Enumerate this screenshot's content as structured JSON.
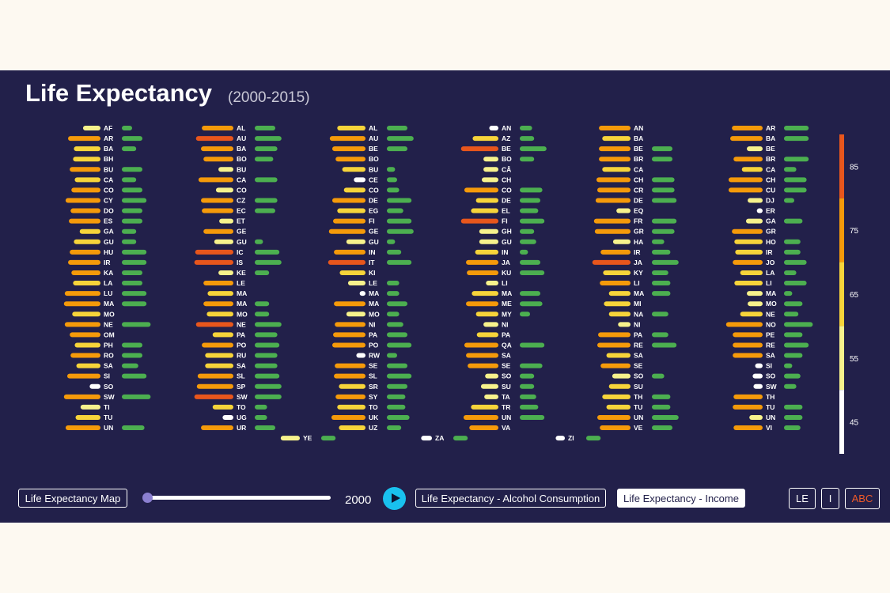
{
  "header": {
    "title": "Life Expectancy",
    "subtitle": "(2000-2015)"
  },
  "controls": {
    "map_button": "Life Expectancy Map",
    "year": "2000",
    "alcohol_button": "Life Expectancy - Alcohol Consumption",
    "income_button": "Life Expectancy - Income",
    "sort_le": "LE",
    "sort_i": "I",
    "sort_abc": "ABC",
    "play_icon": "play-icon"
  },
  "colors": {
    "background": "#22204a",
    "page": "#fdf9f1",
    "income_bar": "#4caf50",
    "play": "#19c1ee",
    "abc_active": "#f05a28"
  },
  "chart_data": {
    "type": "bar",
    "title": "Life Expectancy",
    "subtitle": "(2000-2015)",
    "year": 2000,
    "color_scale": {
      "ticks": [
        45,
        55,
        65,
        75,
        85
      ],
      "bins": [
        {
          "min": 40,
          "max": 50,
          "color": "#ffffff"
        },
        {
          "min": 50,
          "max": 60,
          "color": "#f7f28c"
        },
        {
          "min": 60,
          "max": 70,
          "color": "#f7d43a"
        },
        {
          "min": 70,
          "max": 80,
          "color": "#f59a0a"
        },
        {
          "min": 80,
          "max": 90,
          "color": "#e8561c"
        }
      ]
    },
    "columns": [
      [
        [
          "AF",
          56,
          5
        ],
        [
          "AR",
          74,
          10
        ],
        [
          "BA",
          67,
          7
        ],
        [
          "BH",
          68,
          0
        ],
        [
          "BU",
          72,
          10
        ],
        [
          "CA",
          66,
          7
        ],
        [
          "CO",
          70,
          10
        ],
        [
          "CY",
          77,
          12
        ],
        [
          "DO",
          71,
          10
        ],
        [
          "ES",
          73,
          10
        ],
        [
          "GA",
          60,
          7
        ],
        [
          "GU",
          67,
          7
        ],
        [
          "HU",
          72,
          12
        ],
        [
          "IR",
          74,
          12
        ],
        [
          "KA",
          70,
          10
        ],
        [
          "LA",
          68,
          10
        ],
        [
          "LU",
          78,
          12
        ],
        [
          "MA",
          79,
          12
        ],
        [
          "MO",
          69,
          0
        ],
        [
          "NE",
          78,
          14
        ],
        [
          "OM",
          72,
          0
        ],
        [
          "PH",
          66,
          10
        ],
        [
          "RO",
          71,
          10
        ],
        [
          "SA",
          64,
          8
        ],
        [
          "SI",
          75,
          12
        ],
        [
          "SO",
          48,
          0
        ],
        [
          "SW",
          79,
          14
        ],
        [
          "TI",
          59,
          0
        ],
        [
          "TU",
          65,
          0
        ],
        [
          "UN",
          77,
          11
        ]
      ],
      [
        [
          "AL",
          73,
          10
        ],
        [
          "AU",
          80,
          13
        ],
        [
          "BA",
          74,
          11
        ],
        [
          "BO",
          71,
          9
        ],
        [
          "BU",
          53,
          0
        ],
        [
          "CA",
          77,
          11
        ],
        [
          "CO",
          56,
          0
        ],
        [
          "CZ",
          74,
          11
        ],
        [
          "EC",
          73,
          10
        ],
        [
          "ET",
          52,
          0
        ],
        [
          "GE",
          71,
          0
        ],
        [
          "GU",
          58,
          4
        ],
        [
          "IC",
          81,
          12
        ],
        [
          "IS",
          82,
          13
        ],
        [
          "KE",
          53,
          7
        ],
        [
          "LE",
          71,
          0
        ],
        [
          "MA",
          66,
          0
        ],
        [
          "MA",
          71,
          7
        ],
        [
          "MO",
          67,
          7
        ],
        [
          "NE",
          80,
          13
        ],
        [
          "PA",
          60,
          11
        ],
        [
          "PO",
          73,
          12
        ],
        [
          "RU",
          69,
          11
        ],
        [
          "SA",
          69,
          11
        ],
        [
          "SL",
          78,
          12
        ],
        [
          "SP",
          79,
          13
        ],
        [
          "SW",
          82,
          13
        ],
        [
          "TO",
          60,
          6
        ],
        [
          "UG",
          48,
          6
        ],
        [
          "UR",
          74,
          10
        ]
      ],
      [
        [
          "AL",
          69,
          10
        ],
        [
          "AU",
          78,
          13
        ],
        [
          "BE",
          75,
          10
        ],
        [
          "BO",
          71,
          0
        ],
        [
          "BU",
          63,
          4
        ],
        [
          "CE",
          49,
          5
        ],
        [
          "CO",
          61,
          6
        ],
        [
          "DE",
          75,
          12
        ],
        [
          "EG",
          69,
          8
        ],
        [
          "FI",
          74,
          12
        ],
        [
          "GE",
          79,
          13
        ],
        [
          "GU",
          58,
          4
        ],
        [
          "IN",
          73,
          7
        ],
        [
          "IT",
          80,
          12
        ],
        [
          "KI",
          66,
          0
        ],
        [
          "LE",
          56,
          6
        ],
        [
          "MA",
          42,
          6
        ],
        [
          "MA",
          73,
          10
        ],
        [
          "MO",
          58,
          6
        ],
        [
          "NI",
          72,
          8
        ],
        [
          "PA",
          74,
          10
        ],
        [
          "PO",
          75,
          12
        ],
        [
          "RW",
          46,
          5
        ],
        [
          "SE",
          72,
          10
        ],
        [
          "SL",
          73,
          12
        ],
        [
          "SR",
          67,
          10
        ],
        [
          "SY",
          71,
          9
        ],
        [
          "TO",
          69,
          9
        ],
        [
          "UK",
          76,
          11
        ],
        [
          "UZ",
          67,
          7
        ]
      ],
      [
        [
          "AN",
          46,
          6
        ],
        [
          "AZ",
          66,
          7
        ],
        [
          "BE",
          80,
          13
        ],
        [
          "BO",
          53,
          7
        ],
        [
          "CÂ",
          53,
          0
        ],
        [
          "CH",
          55,
          0
        ],
        [
          "CO",
          76,
          11
        ],
        [
          "DE",
          62,
          10
        ],
        [
          "EL",
          68,
          9
        ],
        [
          "FI",
          80,
          12
        ],
        [
          "GH",
          58,
          7
        ],
        [
          "GU",
          58,
          8
        ],
        [
          "IN",
          63,
          4
        ],
        [
          "JA",
          74,
          10
        ],
        [
          "KU",
          73,
          12
        ],
        [
          "LI",
          50,
          0
        ],
        [
          "MA",
          67,
          10
        ],
        [
          "ME",
          74,
          11
        ],
        [
          "MY",
          62,
          5
        ],
        [
          "NI",
          53,
          0
        ],
        [
          "PA",
          61,
          0
        ],
        [
          "QA",
          76,
          12
        ],
        [
          "SA",
          74,
          0
        ],
        [
          "SE",
          72,
          11
        ],
        [
          "SO",
          51,
          7
        ],
        [
          "SU",
          56,
          7
        ],
        [
          "TA",
          52,
          8
        ],
        [
          "TR",
          68,
          9
        ],
        [
          "UN",
          77,
          12
        ],
        [
          "VA",
          70,
          0
        ]
      ],
      [
        [
          "AN",
          73,
          0
        ],
        [
          "BA",
          69,
          0
        ],
        [
          "BE",
          73,
          10
        ],
        [
          "BR",
          73,
          10
        ],
        [
          "CA",
          69,
          0
        ],
        [
          "CH",
          76,
          11
        ],
        [
          "CR",
          75,
          11
        ],
        [
          "DE",
          77,
          12
        ],
        [
          "EQ",
          52,
          0
        ],
        [
          "FR",
          79,
          12
        ],
        [
          "GR",
          78,
          11
        ],
        [
          "HA",
          56,
          6
        ],
        [
          "IR",
          71,
          9
        ],
        [
          "JA",
          81,
          13
        ],
        [
          "KY",
          68,
          8
        ],
        [
          "LI",
          72,
          9
        ],
        [
          "MA",
          61,
          9
        ],
        [
          "MI",
          67,
          0
        ],
        [
          "NA",
          61,
          8
        ],
        [
          "NI",
          50,
          0
        ],
        [
          "PA",
          74,
          8
        ],
        [
          "RE",
          75,
          12
        ],
        [
          "SA",
          64,
          0
        ],
        [
          "SE",
          71,
          0
        ],
        [
          "SO",
          57,
          6
        ],
        [
          "SU",
          61,
          0
        ],
        [
          "TH",
          69,
          9
        ],
        [
          "TU",
          64,
          9
        ],
        [
          "UN",
          75,
          13
        ],
        [
          "VE",
          72,
          10
        ]
      ],
      [
        [
          "AR",
          72,
          12
        ],
        [
          "BA",
          74,
          12
        ],
        [
          "BE",
          54,
          0
        ],
        [
          "BR",
          70,
          12
        ],
        [
          "CA",
          60,
          6
        ],
        [
          "CH",
          76,
          11
        ],
        [
          "CU",
          76,
          11
        ],
        [
          "DJ",
          53,
          5
        ],
        [
          "ER",
          42,
          0
        ],
        [
          "GA",
          55,
          9
        ],
        [
          "GR",
          72,
          0
        ],
        [
          "HO",
          69,
          8
        ],
        [
          "IR",
          68,
          8
        ],
        [
          "JO",
          71,
          11
        ],
        [
          "LA",
          62,
          6
        ],
        [
          "LI",
          69,
          11
        ],
        [
          "MA",
          54,
          4
        ],
        [
          "MO",
          53,
          9
        ],
        [
          "NE",
          62,
          7
        ],
        [
          "NO",
          79,
          14
        ],
        [
          "PE",
          71,
          9
        ],
        [
          "RE",
          71,
          12
        ],
        [
          "SA",
          71,
          9
        ],
        [
          "SI",
          44,
          4
        ],
        [
          "SO",
          47,
          8
        ],
        [
          "SW",
          46,
          6
        ],
        [
          "TH",
          70,
          0
        ],
        [
          "TU",
          71,
          9
        ],
        [
          "UN",
          51,
          9
        ],
        [
          "VI",
          70,
          8
        ]
      ]
    ],
    "extra_row": [
      [
        "YE",
        58,
        7,
        1
      ],
      [
        "ZA",
        48,
        7,
        2
      ],
      [
        "ZI",
        46,
        7,
        3
      ]
    ]
  }
}
